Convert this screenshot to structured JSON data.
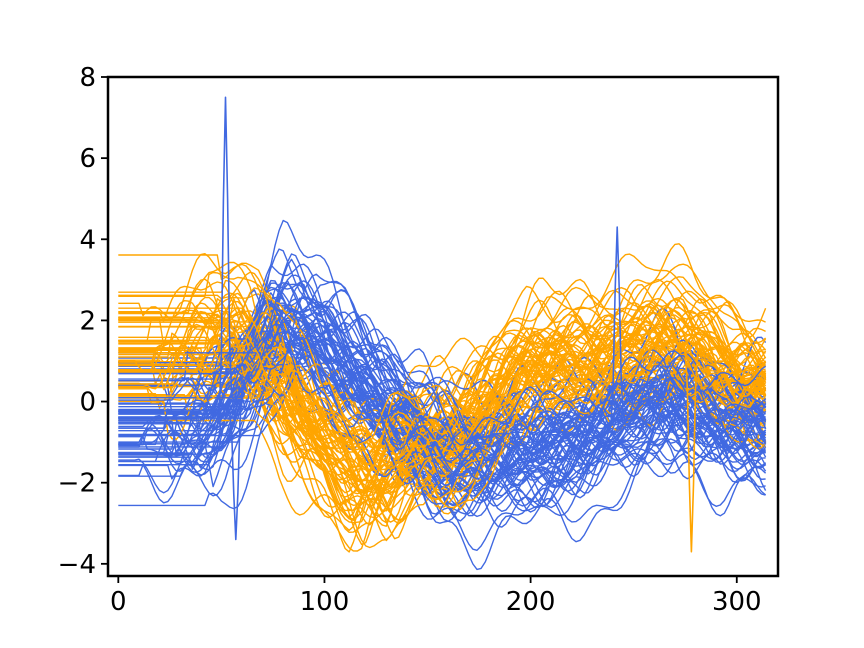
{
  "chart_data": {
    "type": "line",
    "title": "",
    "xlabel": "",
    "ylabel": "",
    "xlim": [
      -5,
      320
    ],
    "ylim": [
      -4.3,
      8
    ],
    "grid": false,
    "legend": "none",
    "x_ticks": [
      0,
      100,
      200,
      300
    ],
    "x_tick_labels": [
      "0",
      "100",
      "200",
      "300"
    ],
    "y_ticks": [
      -4,
      -2,
      0,
      2,
      4,
      6,
      8
    ],
    "y_tick_labels": [
      "−4",
      "−2",
      "0",
      "2",
      "4",
      "6",
      "8"
    ],
    "n_points_per_series": 316,
    "colors": {
      "class_a": "#4169e1",
      "class_b": "#ffa500"
    },
    "series": [
      {
        "color": "#ffa500",
        "mean_profile": {
          "x": [
            0,
            25,
            50,
            70,
            90,
            110,
            125,
            140,
            160,
            185,
            200,
            230,
            260,
            280,
            300,
            315
          ],
          "y": [
            0.8,
            0.9,
            1.7,
            1.4,
            -0.5,
            -1.4,
            -2.0,
            -1.0,
            -1.2,
            0.3,
            0.9,
            1.0,
            1.5,
            1.4,
            0.6,
            0.4
          ]
        },
        "notable_points": [
          {
            "x": 278,
            "y": -3.7
          }
        ],
        "approx_max": 3.9,
        "approx_min": -3.7
      },
      {
        "color": "#4169e1",
        "mean_profile": {
          "x": [
            0,
            25,
            45,
            60,
            80,
            95,
            115,
            130,
            150,
            170,
            200,
            230,
            250,
            270,
            290,
            315
          ],
          "y": [
            -1.0,
            -1.0,
            -0.8,
            0.3,
            2.0,
            1.6,
            0.6,
            -0.2,
            -1.2,
            -1.6,
            -1.3,
            -0.9,
            -0.4,
            0.2,
            -0.6,
            -0.8
          ]
        },
        "notable_points": [
          {
            "x": 52,
            "y": 7.5
          },
          {
            "x": 57,
            "y": -3.4
          },
          {
            "x": 242,
            "y": 4.3
          }
        ],
        "approx_max": 7.5,
        "approx_min": -3.4
      }
    ]
  }
}
